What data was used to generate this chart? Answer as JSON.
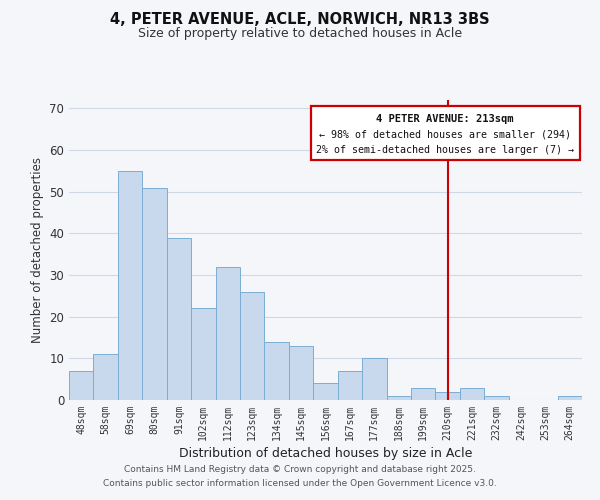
{
  "title": "4, PETER AVENUE, ACLE, NORWICH, NR13 3BS",
  "subtitle": "Size of property relative to detached houses in Acle",
  "xlabel": "Distribution of detached houses by size in Acle",
  "ylabel": "Number of detached properties",
  "bar_labels": [
    "48sqm",
    "58sqm",
    "69sqm",
    "80sqm",
    "91sqm",
    "102sqm",
    "112sqm",
    "123sqm",
    "134sqm",
    "145sqm",
    "156sqm",
    "167sqm",
    "177sqm",
    "188sqm",
    "199sqm",
    "210sqm",
    "221sqm",
    "232sqm",
    "242sqm",
    "253sqm",
    "264sqm"
  ],
  "bar_values": [
    7,
    11,
    55,
    51,
    39,
    22,
    32,
    26,
    14,
    13,
    4,
    7,
    10,
    1,
    3,
    2,
    3,
    1,
    0,
    0,
    1
  ],
  "bar_color": "#c8d9ee",
  "bar_edge_color": "#7aadd4",
  "ylim": [
    0,
    72
  ],
  "yticks": [
    0,
    10,
    20,
    30,
    40,
    50,
    60,
    70
  ],
  "vline_x_idx": 15,
  "vline_color": "#cc0000",
  "annotation_title": "4 PETER AVENUE: 213sqm",
  "annotation_line1": "← 98% of detached houses are smaller (294)",
  "annotation_line2": "2% of semi-detached houses are larger (7) →",
  "annotation_box_color": "#cc0000",
  "footer_line1": "Contains HM Land Registry data © Crown copyright and database right 2025.",
  "footer_line2": "Contains public sector information licensed under the Open Government Licence v3.0.",
  "background_color": "#f5f6fa",
  "grid_color": "#d0d8e8"
}
